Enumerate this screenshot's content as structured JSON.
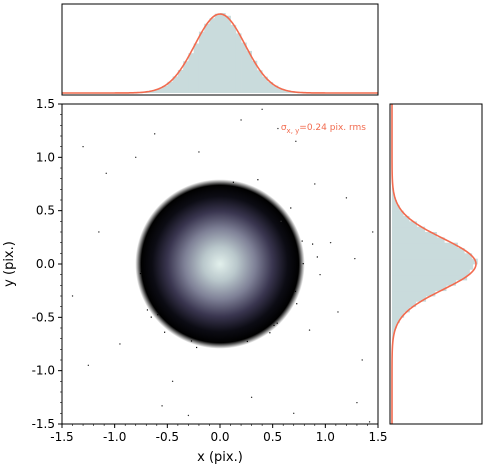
{
  "chart_data": [
    {
      "id": "main",
      "type": "scatter",
      "xlabel": "x (pix.)",
      "ylabel": "y (pix.)",
      "xlim": [
        -1.5,
        1.5
      ],
      "ylim": [
        -1.5,
        1.5
      ],
      "xticks": [
        "-1.5",
        "-1.0",
        "-0.5",
        "0.0",
        "0.5",
        "1.0",
        "1.5"
      ],
      "yticks": [
        "-1.5",
        "-1.0",
        "-0.5",
        "0.0",
        "0.5",
        "1.0",
        "1.5"
      ],
      "annotation": "σx, y=0.24 pix. rms",
      "annotation_color": "#f26b4f",
      "distribution": {
        "center": [
          0.0,
          0.0
        ],
        "sigma": 0.24
      },
      "colormap": "bone",
      "outliers": [
        [
          0.2,
          1.35
        ],
        [
          -0.62,
          1.22
        ],
        [
          0.55,
          1.27
        ],
        [
          -1.08,
          0.85
        ],
        [
          1.2,
          0.62
        ],
        [
          0.95,
          -0.1
        ],
        [
          1.45,
          0.3
        ],
        [
          -1.4,
          -0.3
        ],
        [
          -0.95,
          -0.75
        ],
        [
          0.85,
          -0.62
        ],
        [
          1.35,
          -0.9
        ],
        [
          0.3,
          -1.25
        ],
        [
          -0.55,
          -1.33
        ],
        [
          -0.3,
          -1.42
        ],
        [
          1.3,
          -1.3
        ],
        [
          1.42,
          -1.48
        ],
        [
          0.7,
          -1.4
        ],
        [
          1.05,
          0.2
        ],
        [
          -1.15,
          0.3
        ],
        [
          0.58,
          0.4
        ],
        [
          -0.8,
          1.0
        ],
        [
          0.72,
          1.15
        ],
        [
          -1.3,
          1.1
        ],
        [
          0.9,
          0.75
        ],
        [
          -0.45,
          -1.1
        ],
        [
          1.28,
          0.05
        ],
        [
          -1.25,
          -0.95
        ],
        [
          0.4,
          1.45
        ],
        [
          -0.2,
          1.05
        ],
        [
          1.12,
          -0.45
        ]
      ]
    },
    {
      "id": "top-hist",
      "type": "area",
      "axis": "x",
      "xlim": [
        -1.5,
        1.5
      ],
      "fill_color": "#c9dbdc",
      "line_color": "#f26b4f",
      "gaussian": {
        "mu": 0.0,
        "sigma": 0.24
      }
    },
    {
      "id": "right-hist",
      "type": "area",
      "axis": "y",
      "ylim": [
        -1.5,
        1.5
      ],
      "fill_color": "#c9dbdc",
      "line_color": "#f26b4f",
      "gaussian": {
        "mu": 0.0,
        "sigma": 0.24
      }
    }
  ]
}
